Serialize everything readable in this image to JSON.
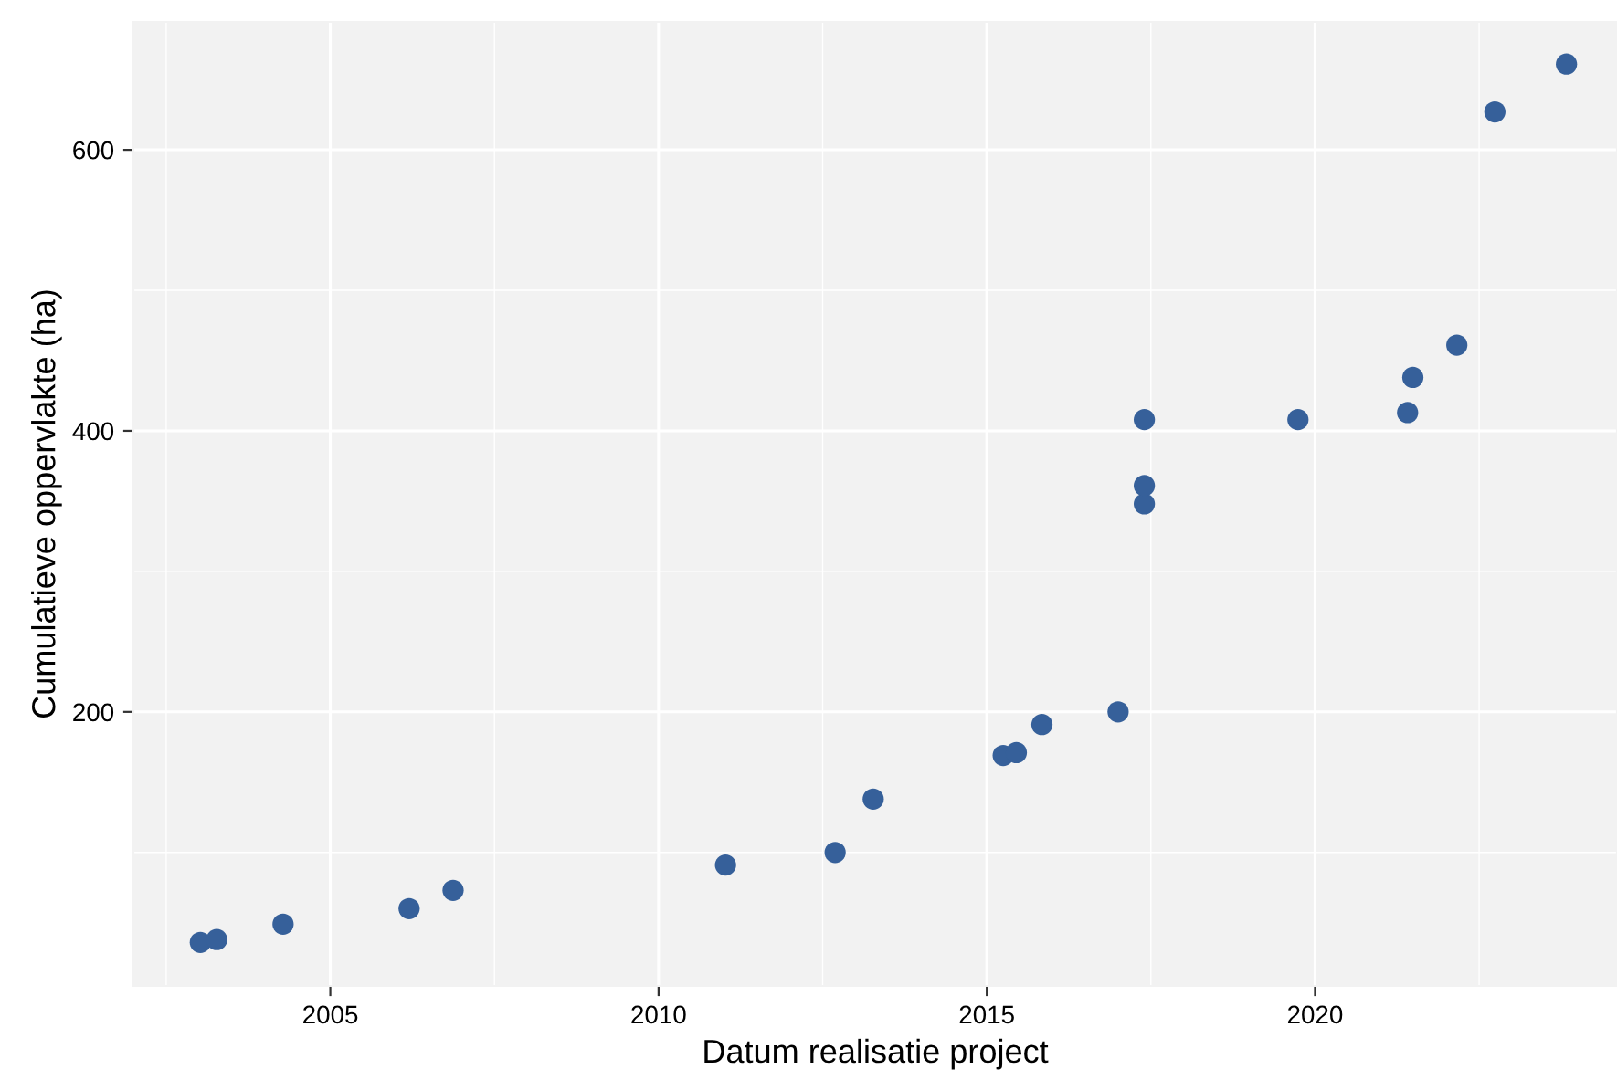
{
  "chart_data": {
    "type": "scatter",
    "xlabel": "Datum realisatie project",
    "ylabel": "Cumulatieve oppervlakte (ha)",
    "x": [
      2003.02,
      2003.27,
      2004.28,
      2006.2,
      2006.87,
      2011.02,
      2012.69,
      2013.27,
      2015.25,
      2015.45,
      2015.84,
      2017.0,
      2017.4,
      2017.4,
      2017.4,
      2019.74,
      2021.41,
      2021.49,
      2022.16,
      2022.74,
      2023.83
    ],
    "series": [
      {
        "color": "#36609a",
        "values": [
          36,
          38,
          49,
          60,
          73,
          91,
          100,
          138,
          169,
          171,
          191,
          200,
          348,
          361,
          408,
          408,
          413,
          438,
          461,
          627,
          661
        ]
      }
    ],
    "xlim": [
      2002.0,
      2024.6
    ],
    "xticks": [
      2005,
      2010,
      2015,
      2020
    ],
    "ylim": [
      5,
      691
    ],
    "yticks": [
      200,
      400,
      600
    ],
    "grid": true,
    "marker": "circle",
    "legend": false
  }
}
